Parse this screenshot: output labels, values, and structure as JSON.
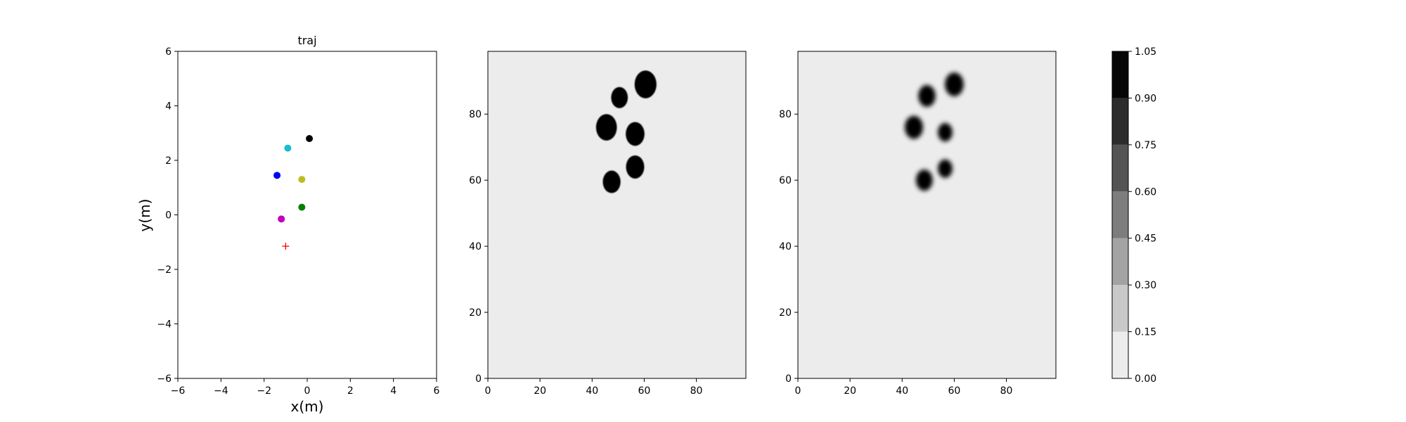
{
  "chart_data": [
    {
      "type": "scatter",
      "title": "traj",
      "xlabel": "x(m)",
      "ylabel": "y(m)",
      "xlim": [
        -6,
        6
      ],
      "ylim": [
        -6,
        6
      ],
      "xticks": [
        -6,
        -4,
        -2,
        0,
        2,
        4,
        6
      ],
      "yticks": [
        -6,
        -4,
        -2,
        0,
        2,
        4,
        6
      ],
      "grid": false,
      "points": [
        {
          "x": 0.1,
          "y": 2.8,
          "color": "#000000",
          "marker": "circle"
        },
        {
          "x": -0.9,
          "y": 2.45,
          "color": "#17becf",
          "marker": "circle"
        },
        {
          "x": -1.4,
          "y": 1.45,
          "color": "#0000ff",
          "marker": "circle"
        },
        {
          "x": -0.25,
          "y": 1.3,
          "color": "#bcbd22",
          "marker": "circle"
        },
        {
          "x": -0.25,
          "y": 0.28,
          "color": "#008000",
          "marker": "circle"
        },
        {
          "x": -1.2,
          "y": -0.15,
          "color": "#bf00bf",
          "marker": "circle"
        },
        {
          "x": -1.0,
          "y": -1.15,
          "color": "#ff0000",
          "marker": "plus"
        }
      ]
    },
    {
      "type": "heatmap",
      "title": "",
      "xlim": [
        0,
        99
      ],
      "ylim": [
        0,
        99
      ],
      "xticks": [
        0,
        20,
        40,
        60,
        80
      ],
      "yticks": [
        0,
        20,
        40,
        60,
        80
      ],
      "background_value": 0.05,
      "blobs": [
        {
          "x": 60.5,
          "y": 89,
          "r": 4.2,
          "value": 1.0
        },
        {
          "x": 50.5,
          "y": 85,
          "r": 3.2,
          "value": 1.0
        },
        {
          "x": 45.5,
          "y": 76,
          "r": 4.0,
          "value": 1.0
        },
        {
          "x": 56.5,
          "y": 74,
          "r": 3.6,
          "value": 1.0
        },
        {
          "x": 56.5,
          "y": 64,
          "r": 3.5,
          "value": 1.0
        },
        {
          "x": 47.5,
          "y": 59.5,
          "r": 3.4,
          "value": 1.0
        }
      ]
    },
    {
      "type": "heatmap",
      "title": "",
      "xlim": [
        0,
        99
      ],
      "ylim": [
        0,
        99
      ],
      "xticks": [
        0,
        20,
        40,
        60,
        80
      ],
      "yticks": [
        0,
        20,
        40,
        60,
        80
      ],
      "background_value": 0.05,
      "blobs": [
        {
          "x": 60,
          "y": 89,
          "r": 3.6,
          "value": 0.95
        },
        {
          "x": 49.5,
          "y": 85.5,
          "r": 3.3,
          "value": 0.95
        },
        {
          "x": 44.5,
          "y": 76,
          "r": 3.5,
          "value": 0.95
        },
        {
          "x": 56.5,
          "y": 74.5,
          "r": 2.8,
          "value": 0.95
        },
        {
          "x": 56.5,
          "y": 63.5,
          "r": 2.8,
          "value": 0.9
        },
        {
          "x": 48.5,
          "y": 60,
          "r": 3.2,
          "value": 0.95
        }
      ]
    },
    {
      "type": "colorbar",
      "levels": [
        0.0,
        0.15,
        0.3,
        0.45,
        0.6,
        0.75,
        0.9,
        1.05
      ],
      "tick_labels": [
        "0.00",
        "0.15",
        "0.30",
        "0.45",
        "0.60",
        "0.75",
        "0.90",
        "1.05"
      ],
      "colors": [
        "#ececec",
        "#c9c9c9",
        "#a3a3a3",
        "#7d7d7d",
        "#545454",
        "#2c2c2c",
        "#060606"
      ]
    }
  ]
}
